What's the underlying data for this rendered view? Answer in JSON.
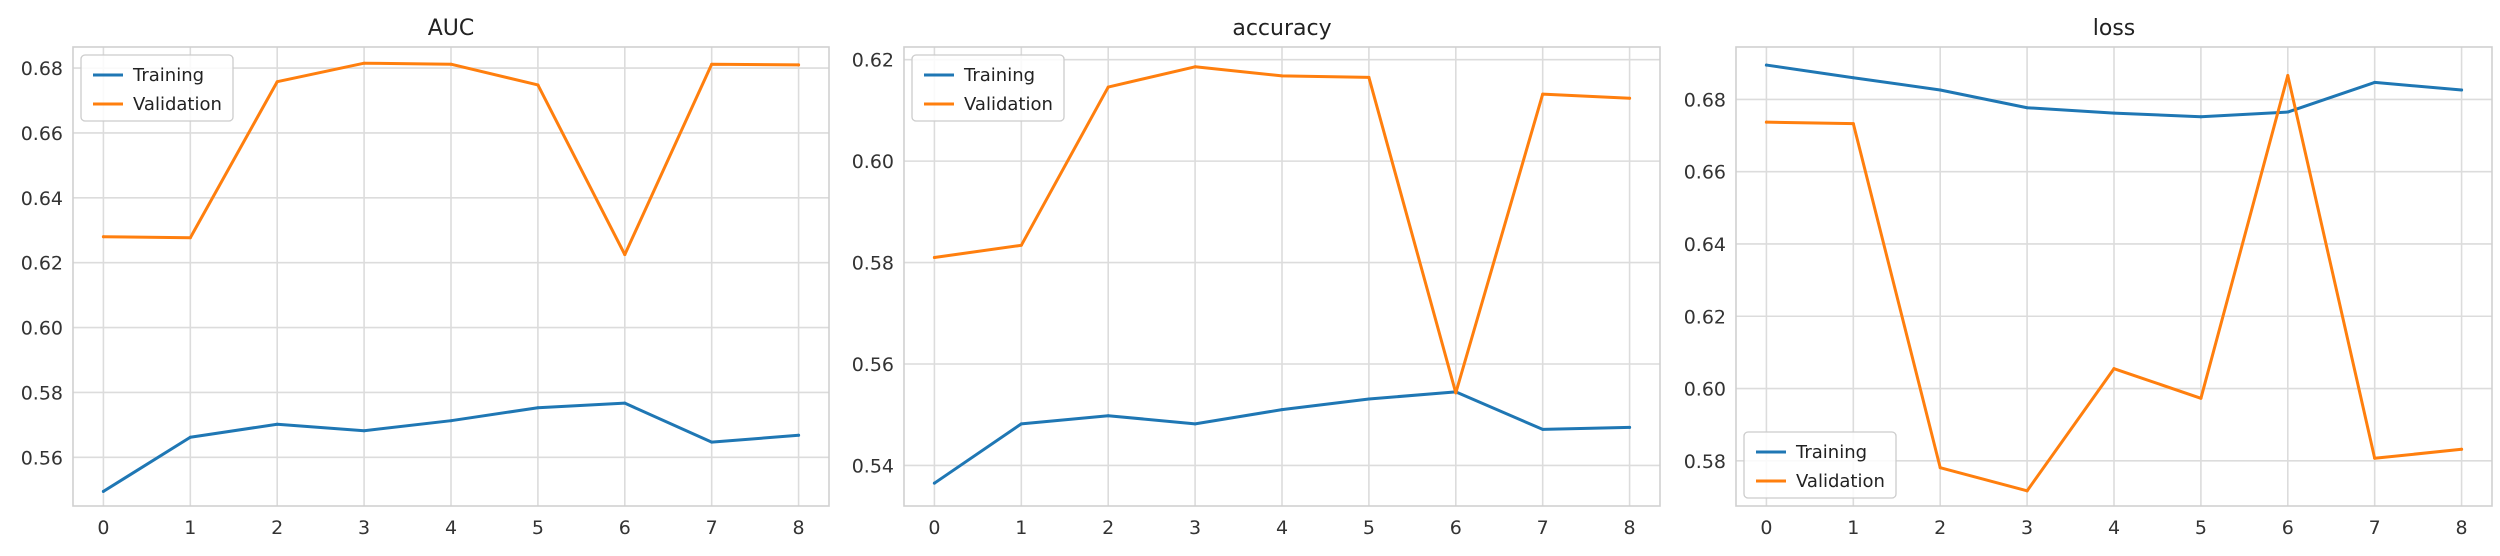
{
  "colors": {
    "training": "#1f77b4",
    "validation": "#ff7f0e"
  },
  "chart_data": [
    {
      "type": "line",
      "title": "AUC",
      "xlabel": "",
      "ylabel": "",
      "x": [
        0,
        1,
        2,
        3,
        4,
        5,
        6,
        7,
        8
      ],
      "xticks": [
        "0",
        "1",
        "2",
        "3",
        "4",
        "5",
        "6",
        "7",
        "8"
      ],
      "ylim": [
        0.545,
        0.6865
      ],
      "yticks": [
        0.56,
        0.58,
        0.6,
        0.62,
        0.64,
        0.66,
        0.68
      ],
      "ytick_labels": [
        "0.56",
        "0.58",
        "0.60",
        "0.62",
        "0.64",
        "0.66",
        "0.68"
      ],
      "grid": true,
      "legend": "upper-left",
      "series": [
        {
          "name": "Training",
          "color": "#1f77b4",
          "values": [
            0.5495,
            0.5662,
            0.5702,
            0.5682,
            0.5713,
            0.5753,
            0.5767,
            0.5647,
            0.5668
          ]
        },
        {
          "name": "Validation",
          "color": "#ff7f0e",
          "values": [
            0.628,
            0.6277,
            0.6758,
            0.6815,
            0.6812,
            0.6748,
            0.6225,
            0.6812,
            0.681
          ]
        }
      ]
    },
    {
      "type": "line",
      "title": "accuracy",
      "xlabel": "",
      "ylabel": "",
      "x": [
        0,
        1,
        2,
        3,
        4,
        5,
        6,
        7,
        8
      ],
      "xticks": [
        "0",
        "1",
        "2",
        "3",
        "4",
        "5",
        "6",
        "7",
        "8"
      ],
      "ylim": [
        0.532,
        0.6225
      ],
      "yticks": [
        0.54,
        0.56,
        0.58,
        0.6,
        0.62
      ],
      "ytick_labels": [
        "0.54",
        "0.56",
        "0.58",
        "0.60",
        "0.62"
      ],
      "grid": true,
      "legend": "upper-left",
      "series": [
        {
          "name": "Training",
          "color": "#1f77b4",
          "values": [
            0.5365,
            0.5482,
            0.5498,
            0.5482,
            0.551,
            0.5531,
            0.5545,
            0.5471,
            0.5475
          ]
        },
        {
          "name": "Validation",
          "color": "#ff7f0e",
          "values": [
            0.581,
            0.5834,
            0.6146,
            0.6186,
            0.6168,
            0.6165,
            0.5543,
            0.6132,
            0.6124
          ]
        }
      ]
    },
    {
      "type": "line",
      "title": "loss",
      "xlabel": "",
      "ylabel": "",
      "x": [
        0,
        1,
        2,
        3,
        4,
        5,
        6,
        7,
        8
      ],
      "xticks": [
        "0",
        "1",
        "2",
        "3",
        "4",
        "5",
        "6",
        "7",
        "8"
      ],
      "ylim": [
        0.5675,
        0.6945
      ],
      "yticks": [
        0.58,
        0.6,
        0.62,
        0.64,
        0.66,
        0.68
      ],
      "ytick_labels": [
        "0.58",
        "0.60",
        "0.62",
        "0.64",
        "0.66",
        "0.68"
      ],
      "grid": true,
      "legend": "lower-left",
      "series": [
        {
          "name": "Training",
          "color": "#1f77b4",
          "values": [
            0.6895,
            0.686,
            0.6826,
            0.6777,
            0.6762,
            0.6752,
            0.6765,
            0.6847,
            0.6826
          ]
        },
        {
          "name": "Validation",
          "color": "#ff7f0e",
          "values": [
            0.6737,
            0.6733,
            0.5781,
            0.5717,
            0.6055,
            0.5973,
            0.6866,
            0.5807,
            0.5832
          ]
        }
      ]
    }
  ]
}
